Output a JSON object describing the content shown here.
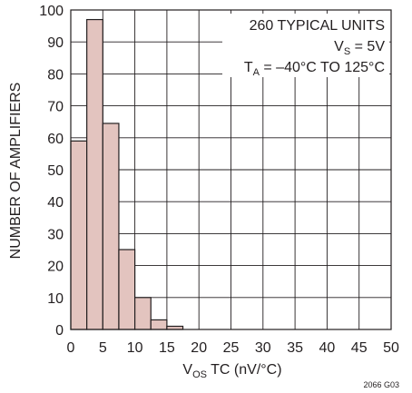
{
  "chart_data": {
    "type": "bar",
    "title": "",
    "xlabel": {
      "main": "V",
      "sub": "OS",
      "rest": " TC (nV/°C)"
    },
    "ylabel": "NUMBER OF AMPLIFIERS",
    "xlim": [
      0,
      50
    ],
    "ylim": [
      0,
      100
    ],
    "xticks": [
      "0",
      "5",
      "10",
      "15",
      "20",
      "25",
      "30",
      "35",
      "40",
      "45",
      "50"
    ],
    "yticks": [
      "0",
      "10",
      "20",
      "30",
      "40",
      "50",
      "60",
      "70",
      "80",
      "90",
      "100"
    ],
    "bin_width": 2.5,
    "bins": [
      {
        "start": 0.0,
        "value": 59
      },
      {
        "start": 2.5,
        "value": 97
      },
      {
        "start": 5.0,
        "value": 64.5
      },
      {
        "start": 7.5,
        "value": 25
      },
      {
        "start": 10.0,
        "value": 10
      },
      {
        "start": 12.5,
        "value": 3
      },
      {
        "start": 15.0,
        "value": 1
      }
    ],
    "grid": true,
    "bar_color": "#e3c4bf",
    "edge_color": "#231f20",
    "annotation": {
      "line1": "260 TYPICAL UNITS",
      "line2": {
        "main": "V",
        "sub": "S",
        "rest": " = 5V"
      },
      "line3": {
        "main": "T",
        "sub": "A",
        "rest": " = –40°C TO 125°C"
      }
    },
    "figure_id": "2066 G03"
  }
}
